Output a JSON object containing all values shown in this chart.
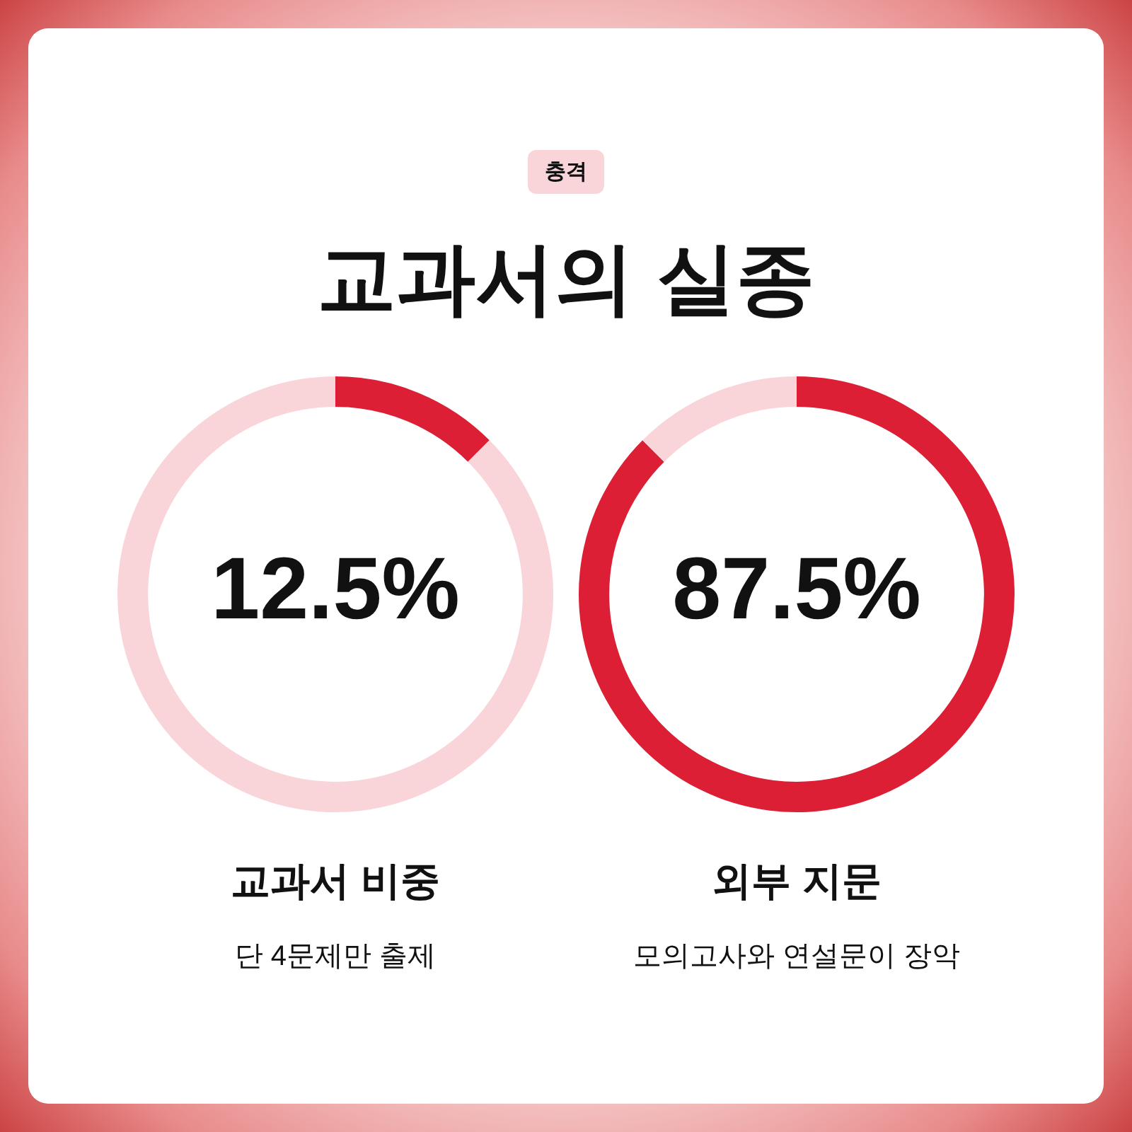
{
  "chart_data": [
    {
      "type": "other",
      "title": "교과서의 실종",
      "annotations": [
        "충격"
      ]
    },
    {
      "type": "donut",
      "title": "교과서 비중",
      "subtitle": "단 4문제만 출제",
      "categories": [
        null,
        null
      ],
      "values": [
        12.5,
        87.5
      ],
      "colors": [
        "#dc1f35",
        "#f9d5da"
      ],
      "value_labels": [
        "12.5%",
        null
      ]
    },
    {
      "type": "donut",
      "title": "외부 지문",
      "subtitle": "모의고사와 연설문이 장악",
      "categories": [
        null,
        null
      ],
      "values": [
        87.5,
        12.5
      ],
      "colors": [
        "#dc1f35",
        "#f9d5da"
      ],
      "value_labels": [
        "87.5%",
        null
      ]
    }
  ]
}
